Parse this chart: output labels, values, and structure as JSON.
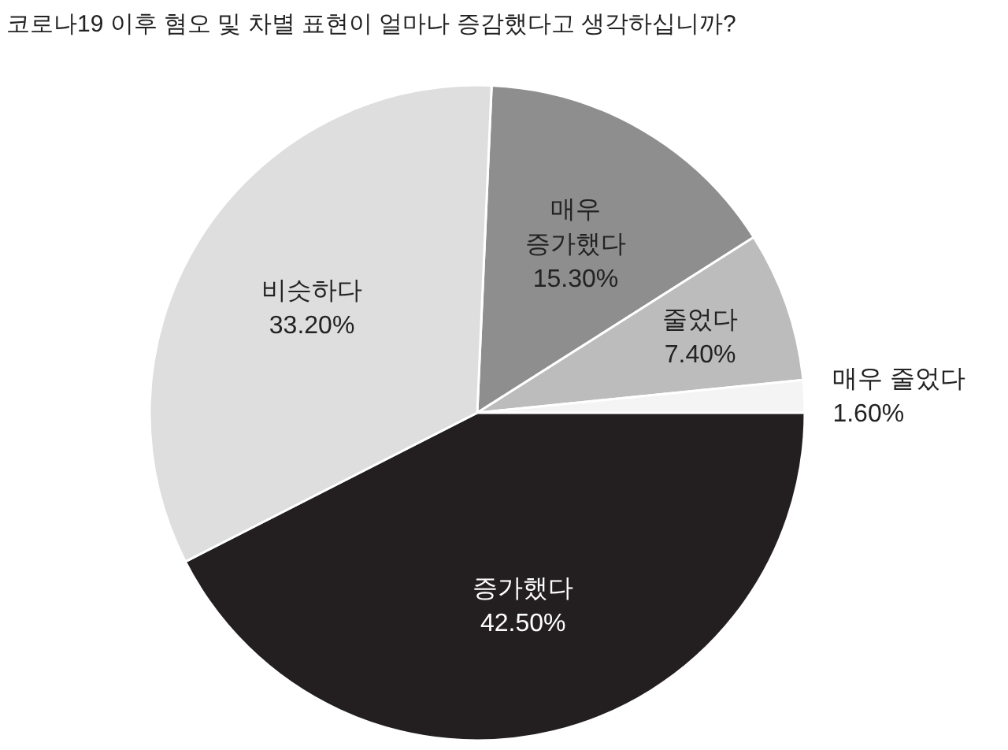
{
  "chart_data": {
    "type": "pie",
    "title": "코로나19 이후 혐오 및 차별 표현이 얼마나 증감했다고 생각하십니까?",
    "categories": [
      "매우 증가했다",
      "줄었다",
      "매우 줄었다",
      "증가했다",
      "비슷하다"
    ],
    "values": [
      15.3,
      7.4,
      1.6,
      42.5,
      33.2
    ],
    "value_labels": [
      "15.30%",
      "7.40%",
      "1.60%",
      "42.50%",
      "33.20%"
    ],
    "colors": [
      "#8e8e8e",
      "#bcbcbc",
      "#f4f4f4",
      "#231f20",
      "#dedede"
    ]
  }
}
